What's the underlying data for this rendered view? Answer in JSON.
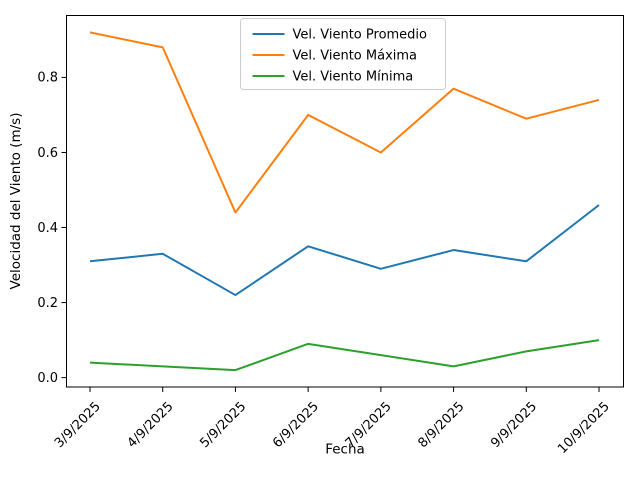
{
  "chart_data": {
    "type": "line",
    "title": "",
    "xlabel": "Fecha",
    "ylabel": "Velocidad del Viento (m/s)",
    "categories": [
      "3/9/2025",
      "4/9/2025",
      "5/9/2025",
      "6/9/2025",
      "7/9/2025",
      "8/9/2025",
      "9/9/2025",
      "10/9/2025"
    ],
    "series": [
      {
        "name": "Vel. Viento Promedio",
        "color": "#1f77b4",
        "values": [
          0.31,
          0.33,
          0.22,
          0.35,
          0.29,
          0.34,
          0.31,
          0.46
        ]
      },
      {
        "name": "Vel. Viento Máxima",
        "color": "#ff7f0e",
        "values": [
          0.92,
          0.88,
          0.44,
          0.7,
          0.6,
          0.77,
          0.69,
          0.74
        ]
      },
      {
        "name": "Vel. Viento Mínima",
        "color": "#2ca02c",
        "values": [
          0.04,
          0.03,
          0.02,
          0.09,
          0.06,
          0.03,
          0.07,
          0.1
        ]
      }
    ],
    "yticks": [
      0.0,
      0.2,
      0.4,
      0.6,
      0.8
    ],
    "ylim": [
      -0.025,
      0.965
    ],
    "grid": false,
    "legend_position": "upper center",
    "legend_border_color": "#cccccc",
    "x_tick_rotation": 45,
    "axis_color": "#000000",
    "background_color": "#ffffff"
  }
}
